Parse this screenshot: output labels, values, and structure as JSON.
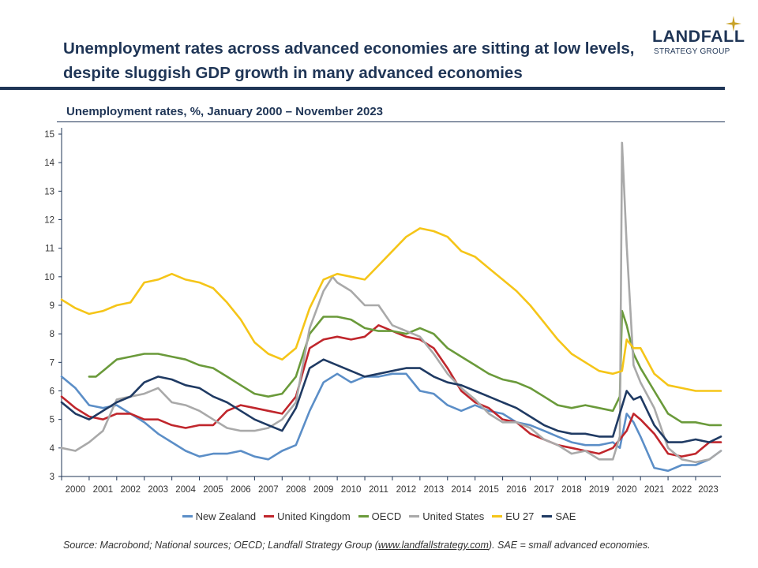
{
  "headline": {
    "line1": "Unemployment rates across advanced economies are sitting at low levels,",
    "line2": "despite sluggish GDP growth in many advanced economies"
  },
  "logo": {
    "name": "LANDFALL",
    "tagline": "STRATEGY GROUP",
    "star_color": "#c9a227"
  },
  "source": {
    "prefix": "Source: Macrobond; National sources; OECD; Landfall Strategy Group (",
    "link": "www.landfallstrategy.com",
    "suffix": "). SAE = small advanced economies."
  },
  "colors": {
    "brand_navy": "#1f3556",
    "gridline": "#e6e6e6"
  },
  "chart_data": {
    "type": "line",
    "title": "Unemployment rates, %, January 2000 – November 2023",
    "xlabel": "",
    "ylabel": "",
    "xlim": [
      2000,
      2023.917
    ],
    "ylim": [
      3,
      15
    ],
    "yticks": [
      3,
      4,
      5,
      6,
      7,
      8,
      9,
      10,
      11,
      12,
      13,
      14,
      15
    ],
    "xticks": [
      "2000",
      "2001",
      "2002",
      "2003",
      "2004",
      "2005",
      "2006",
      "2007",
      "2008",
      "2009",
      "2010",
      "2011",
      "2012",
      "2013",
      "2014",
      "2015",
      "2016",
      "2017",
      "2018",
      "2019",
      "2020",
      "2021",
      "2022",
      "2023"
    ],
    "grid": false,
    "legend": "bottom",
    "series": [
      {
        "name": "New Zealand",
        "color": "#5b8ec7",
        "x": [
          2000,
          2000.5,
          2001,
          2001.5,
          2002,
          2002.5,
          2003,
          2003.5,
          2004,
          2004.5,
          2005,
          2005.5,
          2006,
          2006.5,
          2007,
          2007.5,
          2008,
          2008.5,
          2009,
          2009.5,
          2010,
          2010.5,
          2011,
          2011.5,
          2012,
          2012.5,
          2013,
          2013.5,
          2014,
          2014.5,
          2015,
          2015.5,
          2016,
          2016.5,
          2017,
          2017.5,
          2018,
          2018.5,
          2019,
          2019.5,
          2020,
          2020.25,
          2020.5,
          2020.75,
          2021,
          2021.5,
          2022,
          2022.5,
          2023,
          2023.5,
          2023.917
        ],
        "y": [
          6.5,
          6.1,
          5.5,
          5.4,
          5.5,
          5.2,
          4.9,
          4.5,
          4.2,
          3.9,
          3.7,
          3.8,
          3.8,
          3.9,
          3.7,
          3.6,
          3.9,
          4.1,
          5.3,
          6.3,
          6.6,
          6.3,
          6.5,
          6.5,
          6.6,
          6.6,
          6.0,
          5.9,
          5.5,
          5.3,
          5.5,
          5.3,
          5.2,
          4.9,
          4.8,
          4.6,
          4.4,
          4.2,
          4.1,
          4.1,
          4.2,
          4.0,
          5.2,
          4.9,
          4.4,
          3.3,
          3.2,
          3.4,
          3.4,
          3.6,
          3.9
        ]
      },
      {
        "name": "United Kingdom",
        "color": "#c0262c",
        "x": [
          2000,
          2000.5,
          2001,
          2001.5,
          2002,
          2002.5,
          2003,
          2003.5,
          2004,
          2004.5,
          2005,
          2005.5,
          2006,
          2006.5,
          2007,
          2007.5,
          2008,
          2008.5,
          2009,
          2009.5,
          2010,
          2010.5,
          2011,
          2011.5,
          2012,
          2012.5,
          2013,
          2013.5,
          2014,
          2014.5,
          2015,
          2015.5,
          2016,
          2016.5,
          2017,
          2017.5,
          2018,
          2018.5,
          2019,
          2019.5,
          2020,
          2020.5,
          2020.75,
          2021,
          2021.5,
          2022,
          2022.5,
          2023,
          2023.5,
          2023.917
        ],
        "y": [
          5.8,
          5.4,
          5.1,
          5.0,
          5.2,
          5.2,
          5.0,
          5.0,
          4.8,
          4.7,
          4.8,
          4.8,
          5.3,
          5.5,
          5.4,
          5.3,
          5.2,
          5.8,
          7.5,
          7.8,
          7.9,
          7.8,
          7.9,
          8.3,
          8.1,
          7.9,
          7.8,
          7.5,
          6.8,
          6.0,
          5.6,
          5.4,
          5.0,
          4.9,
          4.5,
          4.3,
          4.1,
          4.0,
          3.9,
          3.8,
          4.0,
          4.6,
          5.2,
          5.0,
          4.5,
          3.8,
          3.7,
          3.8,
          4.2,
          4.2
        ]
      },
      {
        "name": "OECD",
        "color": "#6a9a3a",
        "x": [
          2001,
          2001.25,
          2001.5,
          2002,
          2002.5,
          2003,
          2003.5,
          2004,
          2004.5,
          2005,
          2005.5,
          2006,
          2006.5,
          2007,
          2007.5,
          2008,
          2008.5,
          2009,
          2009.5,
          2010,
          2010.5,
          2011,
          2011.5,
          2012,
          2012.5,
          2013,
          2013.5,
          2014,
          2014.5,
          2015,
          2015.5,
          2016,
          2016.5,
          2017,
          2017.5,
          2018,
          2018.5,
          2019,
          2019.5,
          2020,
          2020.25,
          2020.33,
          2020.5,
          2020.75,
          2021,
          2021.5,
          2022,
          2022.5,
          2023,
          2023.5,
          2023.917
        ],
        "y": [
          6.5,
          6.5,
          6.7,
          7.1,
          7.2,
          7.3,
          7.3,
          7.2,
          7.1,
          6.9,
          6.8,
          6.5,
          6.2,
          5.9,
          5.8,
          5.9,
          6.5,
          8.0,
          8.6,
          8.6,
          8.5,
          8.2,
          8.1,
          8.1,
          8.0,
          8.2,
          8.0,
          7.5,
          7.2,
          6.9,
          6.6,
          6.4,
          6.3,
          6.1,
          5.8,
          5.5,
          5.4,
          5.5,
          5.4,
          5.3,
          5.8,
          8.8,
          8.3,
          7.3,
          6.8,
          6.0,
          5.2,
          4.9,
          4.9,
          4.8,
          4.8
        ]
      },
      {
        "name": "United States",
        "color": "#a9a9a9",
        "x": [
          2000,
          2000.5,
          2001,
          2001.5,
          2002,
          2002.5,
          2003,
          2003.5,
          2004,
          2004.5,
          2005,
          2005.5,
          2006,
          2006.5,
          2007,
          2007.5,
          2008,
          2008.5,
          2009,
          2009.5,
          2009.83,
          2010,
          2010.5,
          2011,
          2011.5,
          2012,
          2012.5,
          2013,
          2013.5,
          2014,
          2014.5,
          2015,
          2015.5,
          2016,
          2016.5,
          2017,
          2017.5,
          2018,
          2018.5,
          2019,
          2019.5,
          2020,
          2020.25,
          2020.33,
          2020.5,
          2020.75,
          2021,
          2021.5,
          2022,
          2022.5,
          2023,
          2023.5,
          2023.917
        ],
        "y": [
          4.0,
          3.9,
          4.2,
          4.6,
          5.7,
          5.8,
          5.9,
          6.1,
          5.6,
          5.5,
          5.3,
          5.0,
          4.7,
          4.6,
          4.6,
          4.7,
          5.0,
          5.6,
          8.2,
          9.5,
          10.0,
          9.8,
          9.5,
          9.0,
          9.0,
          8.3,
          8.1,
          7.9,
          7.3,
          6.6,
          6.1,
          5.7,
          5.2,
          4.9,
          4.9,
          4.7,
          4.3,
          4.1,
          3.8,
          3.9,
          3.6,
          3.6,
          4.4,
          14.7,
          11.1,
          6.9,
          6.3,
          5.4,
          4.0,
          3.6,
          3.5,
          3.6,
          3.9
        ]
      },
      {
        "name": "EU 27",
        "color": "#f5c518",
        "x": [
          2000,
          2000.5,
          2001,
          2001.5,
          2002,
          2002.5,
          2003,
          2003.5,
          2004,
          2004.5,
          2005,
          2005.5,
          2006,
          2006.5,
          2007,
          2007.5,
          2008,
          2008.5,
          2009,
          2009.5,
          2010,
          2010.5,
          2011,
          2011.5,
          2012,
          2012.5,
          2013,
          2013.5,
          2014,
          2014.5,
          2015,
          2015.5,
          2016,
          2016.5,
          2017,
          2017.5,
          2018,
          2018.5,
          2019,
          2019.5,
          2020,
          2020.33,
          2020.5,
          2020.75,
          2021,
          2021.5,
          2022,
          2022.5,
          2023,
          2023.5,
          2023.917
        ],
        "y": [
          9.2,
          8.9,
          8.7,
          8.8,
          9.0,
          9.1,
          9.8,
          9.9,
          10.1,
          9.9,
          9.8,
          9.6,
          9.1,
          8.5,
          7.7,
          7.3,
          7.1,
          7.5,
          8.9,
          9.9,
          10.1,
          10.0,
          9.9,
          10.4,
          10.9,
          11.4,
          11.7,
          11.6,
          11.4,
          10.9,
          10.7,
          10.3,
          9.9,
          9.5,
          9.0,
          8.4,
          7.8,
          7.3,
          7.0,
          6.7,
          6.6,
          6.7,
          7.8,
          7.5,
          7.5,
          6.6,
          6.2,
          6.1,
          6.0,
          6.0,
          6.0
        ]
      },
      {
        "name": "SAE",
        "color": "#1f3a63",
        "x": [
          2000,
          2000.5,
          2001,
          2001.5,
          2002,
          2002.5,
          2003,
          2003.5,
          2004,
          2004.5,
          2005,
          2005.5,
          2006,
          2006.5,
          2007,
          2007.5,
          2008,
          2008.5,
          2009,
          2009.5,
          2010,
          2010.5,
          2011,
          2011.5,
          2012,
          2012.5,
          2013,
          2013.5,
          2014,
          2014.5,
          2015,
          2015.5,
          2016,
          2016.5,
          2017,
          2017.5,
          2018,
          2018.5,
          2019,
          2019.5,
          2020,
          2020.5,
          2020.75,
          2021,
          2021.5,
          2022,
          2022.5,
          2023,
          2023.5,
          2023.917
        ],
        "y": [
          5.6,
          5.2,
          5.0,
          5.3,
          5.6,
          5.8,
          6.3,
          6.5,
          6.4,
          6.2,
          6.1,
          5.8,
          5.6,
          5.3,
          5.0,
          4.8,
          4.6,
          5.4,
          6.8,
          7.1,
          6.9,
          6.7,
          6.5,
          6.6,
          6.7,
          6.8,
          6.8,
          6.5,
          6.3,
          6.2,
          6.0,
          5.8,
          5.6,
          5.4,
          5.1,
          4.8,
          4.6,
          4.5,
          4.5,
          4.4,
          4.4,
          6.0,
          5.7,
          5.8,
          4.8,
          4.2,
          4.2,
          4.3,
          4.2,
          4.4
        ]
      }
    ]
  }
}
